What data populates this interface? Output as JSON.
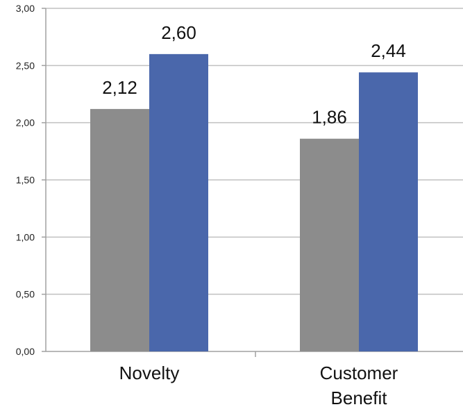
{
  "chart_data": {
    "type": "bar",
    "categories": [
      [
        "Novelty"
      ],
      [
        "Customer",
        "Benefit"
      ]
    ],
    "series": [
      {
        "values": [
          2.12,
          1.86
        ],
        "labels": [
          "2,12",
          "1,86"
        ],
        "color": "#8c8c8c"
      },
      {
        "values": [
          2.6,
          2.44
        ],
        "labels": [
          "2,60",
          "2,44"
        ],
        "color": "#4a67ab"
      }
    ],
    "yticks": [
      {
        "value": 0,
        "label": "0,00"
      },
      {
        "value": 0.5,
        "label": "0,50"
      },
      {
        "value": 1,
        "label": "1,00"
      },
      {
        "value": 1.5,
        "label": "1,50"
      },
      {
        "value": 2,
        "label": "2,00"
      },
      {
        "value": 2.5,
        "label": "2,50"
      },
      {
        "value": 3,
        "label": "3,00"
      }
    ],
    "ylim": [
      0,
      3
    ],
    "grid": true,
    "legend": "none",
    "gridline_color": "#c0c0c0",
    "axis_color": "#a0a0a0"
  }
}
